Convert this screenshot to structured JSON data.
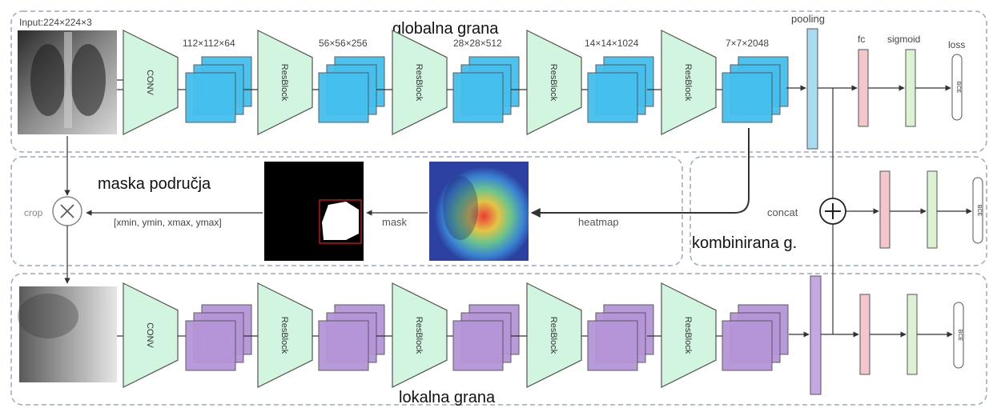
{
  "labels": {
    "input": "Input:224×224×3",
    "global_branch": "globalna grana",
    "local_branch": "lokalna grana",
    "combined_branch": "kombinirana g.",
    "region_mask": "maska područja",
    "crop": "crop",
    "mask": "mask",
    "heatmap": "heatmap",
    "concat": "concat",
    "pooling": "pooling",
    "fc": "fc",
    "sigmoid": "sigmoid",
    "loss": "loss",
    "bbox": "[xmin, ymin, xmax, ymax]"
  },
  "layers": {
    "conv": "CONV",
    "resblock": "ResBlock"
  },
  "feature_dims": [
    "112×112×64",
    "56×56×256",
    "28×28×512",
    "14×14×1024",
    "7×7×2048"
  ],
  "loss_box_text": "BCE",
  "colors": {
    "global_feature": "#44bfee",
    "local_feature": "#b594d8",
    "trapezoid": "#d2f5e0",
    "fc": "#f4c6cc",
    "sigmoid": "#dcf3d3",
    "dashed_border": "#9aa8c8"
  }
}
